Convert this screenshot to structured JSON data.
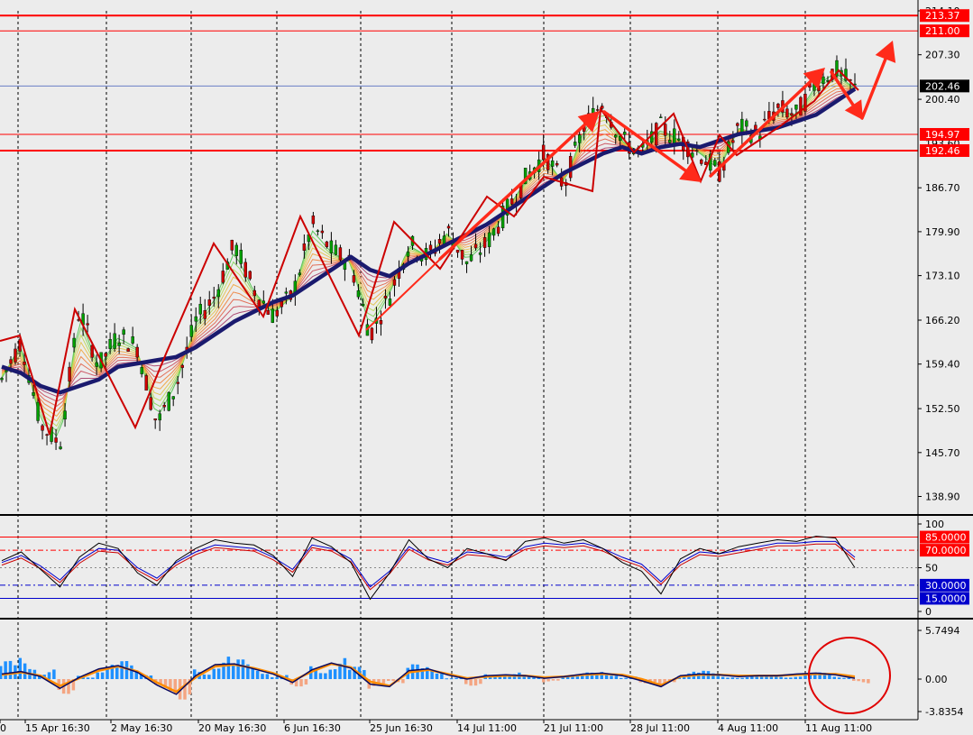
{
  "colors": {
    "background": "#ececec",
    "grid": "#000000",
    "level_line": "#ff0000",
    "arrow": "#ff2a1a",
    "zigzag": "#cc0000",
    "slow_ma": "#1a1a6e",
    "bull_candle": "#00a000",
    "bear_candle": "#d00000",
    "price_tag_red": "#ff0000",
    "price_tag_current": "#000000",
    "stoch_main": "#000000",
    "stoch_signal": "#0000cc",
    "stoch_third": "#cc0000",
    "level_30_15": "#0000cc",
    "macd_up_hist": "#1e90ff",
    "macd_down_hist": "#f4a582",
    "macd_line": "#0a0a60",
    "macd_signal": "#ff8c00",
    "circle": "#e00000"
  },
  "chart_data": [
    {
      "type": "candlestick",
      "panel": "price",
      "ylim": [
        135.0,
        214.1
      ],
      "y_ticks": [
        "214.10",
        "207.30",
        "200.40",
        "186.70",
        "179.90",
        "173.10",
        "166.20",
        "159.40",
        "152.50",
        "145.70",
        "138.90"
      ],
      "hidden_tick_text": "193.60",
      "x_labels": [
        "0",
        "15 Apr 16:30",
        "2 May 16:30",
        "20 May 16:30",
        "6 Jun 16:30",
        "25 Jun 16:30",
        "14 Jul 11:00",
        "21 Jul 11:00",
        "28 Jul 11:00",
        "4 Aug 11:00",
        "11 Aug 11:00"
      ],
      "price_levels": [
        {
          "value": 213.37,
          "label": "213.37",
          "style": "thick"
        },
        {
          "value": 211.0,
          "label": "211.00",
          "style": "thin"
        },
        {
          "value": 194.97,
          "label": "194.97",
          "style": "thin"
        },
        {
          "value": 192.46,
          "label": "192.46",
          "style": "thick"
        }
      ],
      "current_price": {
        "value": 202.46,
        "label": "202.46"
      },
      "close_path": [
        157,
        163,
        150,
        147,
        168,
        159,
        164,
        162,
        150,
        156,
        166,
        170,
        178,
        171,
        167,
        170,
        181,
        177,
        175,
        164,
        170,
        178,
        176,
        180,
        175,
        178,
        183,
        188,
        192,
        187,
        196,
        200,
        194,
        192,
        196,
        194,
        192,
        189,
        196,
        195,
        199,
        198,
        203,
        205,
        202
      ],
      "slow_ma": [
        159,
        158,
        156,
        155,
        156,
        157,
        159,
        159.5,
        160,
        160.5,
        162,
        164,
        166,
        167.5,
        169,
        170,
        172,
        174,
        176,
        174,
        173,
        175,
        176.5,
        178,
        179.5,
        181,
        183,
        185,
        187,
        189,
        190.5,
        192,
        193,
        192,
        193,
        193.5,
        193,
        194,
        195,
        195.5,
        196,
        197,
        198,
        200,
        202
      ]
    },
    {
      "type": "line",
      "panel": "oscillator",
      "ylim": [
        0,
        100
      ],
      "y_ticks": [
        "100",
        "50",
        "0"
      ],
      "levels": [
        {
          "value": 85,
          "label": "85.0000"
        },
        {
          "value": 70,
          "label": "70.0000"
        },
        {
          "value": 30,
          "label": "30.0000"
        },
        {
          "value": 15,
          "label": "15.0000"
        }
      ],
      "main_line": [
        58,
        68,
        48,
        28,
        62,
        78,
        72,
        44,
        30,
        58,
        72,
        82,
        78,
        76,
        64,
        40,
        84,
        74,
        56,
        14,
        44,
        82,
        60,
        50,
        72,
        66,
        58,
        80,
        84,
        78,
        82,
        72,
        56,
        46,
        20,
        60,
        72,
        66,
        74,
        78,
        82,
        80,
        86,
        84,
        50
      ],
      "signal_line": [
        56,
        64,
        52,
        36,
        58,
        72,
        70,
        50,
        38,
        56,
        68,
        76,
        74,
        72,
        62,
        48,
        76,
        72,
        60,
        28,
        46,
        74,
        62,
        56,
        68,
        66,
        62,
        74,
        78,
        76,
        78,
        72,
        62,
        54,
        34,
        56,
        68,
        66,
        70,
        74,
        78,
        78,
        80,
        80,
        62
      ]
    },
    {
      "type": "bar",
      "panel": "macd",
      "ylim": [
        -3.8354,
        5.7494
      ],
      "y_ticks": [
        "5.7494",
        "0.00",
        "-3.8354"
      ],
      "histogram": [
        2.2,
        2.6,
        1.2,
        -1.8,
        0.4,
        1.8,
        2.2,
        1.0,
        -1.5,
        -2.5,
        1.2,
        2.8,
        2.4,
        1.4,
        0.5,
        -0.9,
        1.6,
        2.6,
        1.5,
        -1.2,
        -0.5,
        1.8,
        1.5,
        0.2,
        -0.8,
        0.6,
        0.8,
        0.4,
        -0.4,
        0.5,
        0.8,
        0.9,
        0.3,
        -0.5,
        -0.8,
        0.9,
        1.0,
        0.4,
        0.3,
        0.5,
        0.4,
        0.6,
        0.8,
        0.3,
        -0.5
      ],
      "macd_line": [
        0.6,
        0.9,
        0.3,
        -1.1,
        0.2,
        1.2,
        1.6,
        0.8,
        -0.7,
        -1.8,
        0.4,
        1.7,
        1.8,
        1.2,
        0.6,
        -0.4,
        1.1,
        1.9,
        1.3,
        -0.6,
        -0.9,
        1.0,
        1.2,
        0.5,
        0.0,
        0.4,
        0.5,
        0.4,
        0.1,
        0.3,
        0.6,
        0.7,
        0.4,
        -0.2,
        -0.9,
        0.4,
        0.6,
        0.5,
        0.3,
        0.4,
        0.4,
        0.6,
        0.7,
        0.5,
        0.1
      ],
      "signal_line": [
        0.5,
        0.8,
        0.4,
        -0.8,
        0.1,
        1.0,
        1.5,
        0.9,
        -0.4,
        -1.5,
        0.2,
        1.5,
        1.7,
        1.3,
        0.7,
        -0.2,
        0.9,
        1.8,
        1.4,
        -0.3,
        -0.8,
        0.8,
        1.1,
        0.6,
        0.1,
        0.3,
        0.4,
        0.4,
        0.2,
        0.3,
        0.5,
        0.6,
        0.5,
        0.0,
        -0.7,
        0.3,
        0.5,
        0.5,
        0.4,
        0.4,
        0.4,
        0.5,
        0.6,
        0.6,
        0.3
      ]
    }
  ]
}
